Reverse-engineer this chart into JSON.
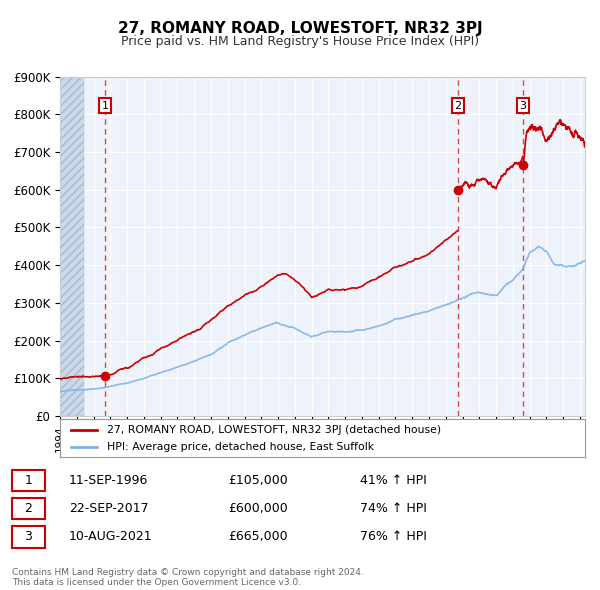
{
  "title": "27, ROMANY ROAD, LOWESTOFT, NR32 3PJ",
  "subtitle": "Price paid vs. HM Land Registry's House Price Index (HPI)",
  "ylim": [
    0,
    900000
  ],
  "yticks": [
    0,
    100000,
    200000,
    300000,
    400000,
    500000,
    600000,
    700000,
    800000,
    900000
  ],
  "ytick_labels": [
    "£0",
    "£100K",
    "£200K",
    "£300K",
    "£400K",
    "£500K",
    "£600K",
    "£700K",
    "£800K",
    "£900K"
  ],
  "xlim_start": 1994.0,
  "xlim_end": 2025.3,
  "line1_color": "#cc0000",
  "line2_color": "#7fb3e8",
  "hatch_end": 1995.42,
  "sale_dates": [
    1996.69,
    2017.72,
    2021.61
  ],
  "sale_prices": [
    105000,
    600000,
    665000
  ],
  "sale_labels": [
    "1",
    "2",
    "3"
  ],
  "legend_line1": "27, ROMANY ROAD, LOWESTOFT, NR32 3PJ (detached house)",
  "legend_line2": "HPI: Average price, detached house, East Suffolk",
  "table_data": [
    [
      "1",
      "11-SEP-1996",
      "£105,000",
      "41% ↑ HPI"
    ],
    [
      "2",
      "22-SEP-2017",
      "£600,000",
      "74% ↑ HPI"
    ],
    [
      "3",
      "10-AUG-2021",
      "£665,000",
      "76% ↑ HPI"
    ]
  ],
  "footnote": "Contains HM Land Registry data © Crown copyright and database right 2024.\nThis data is licensed under the Open Government Licence v3.0."
}
